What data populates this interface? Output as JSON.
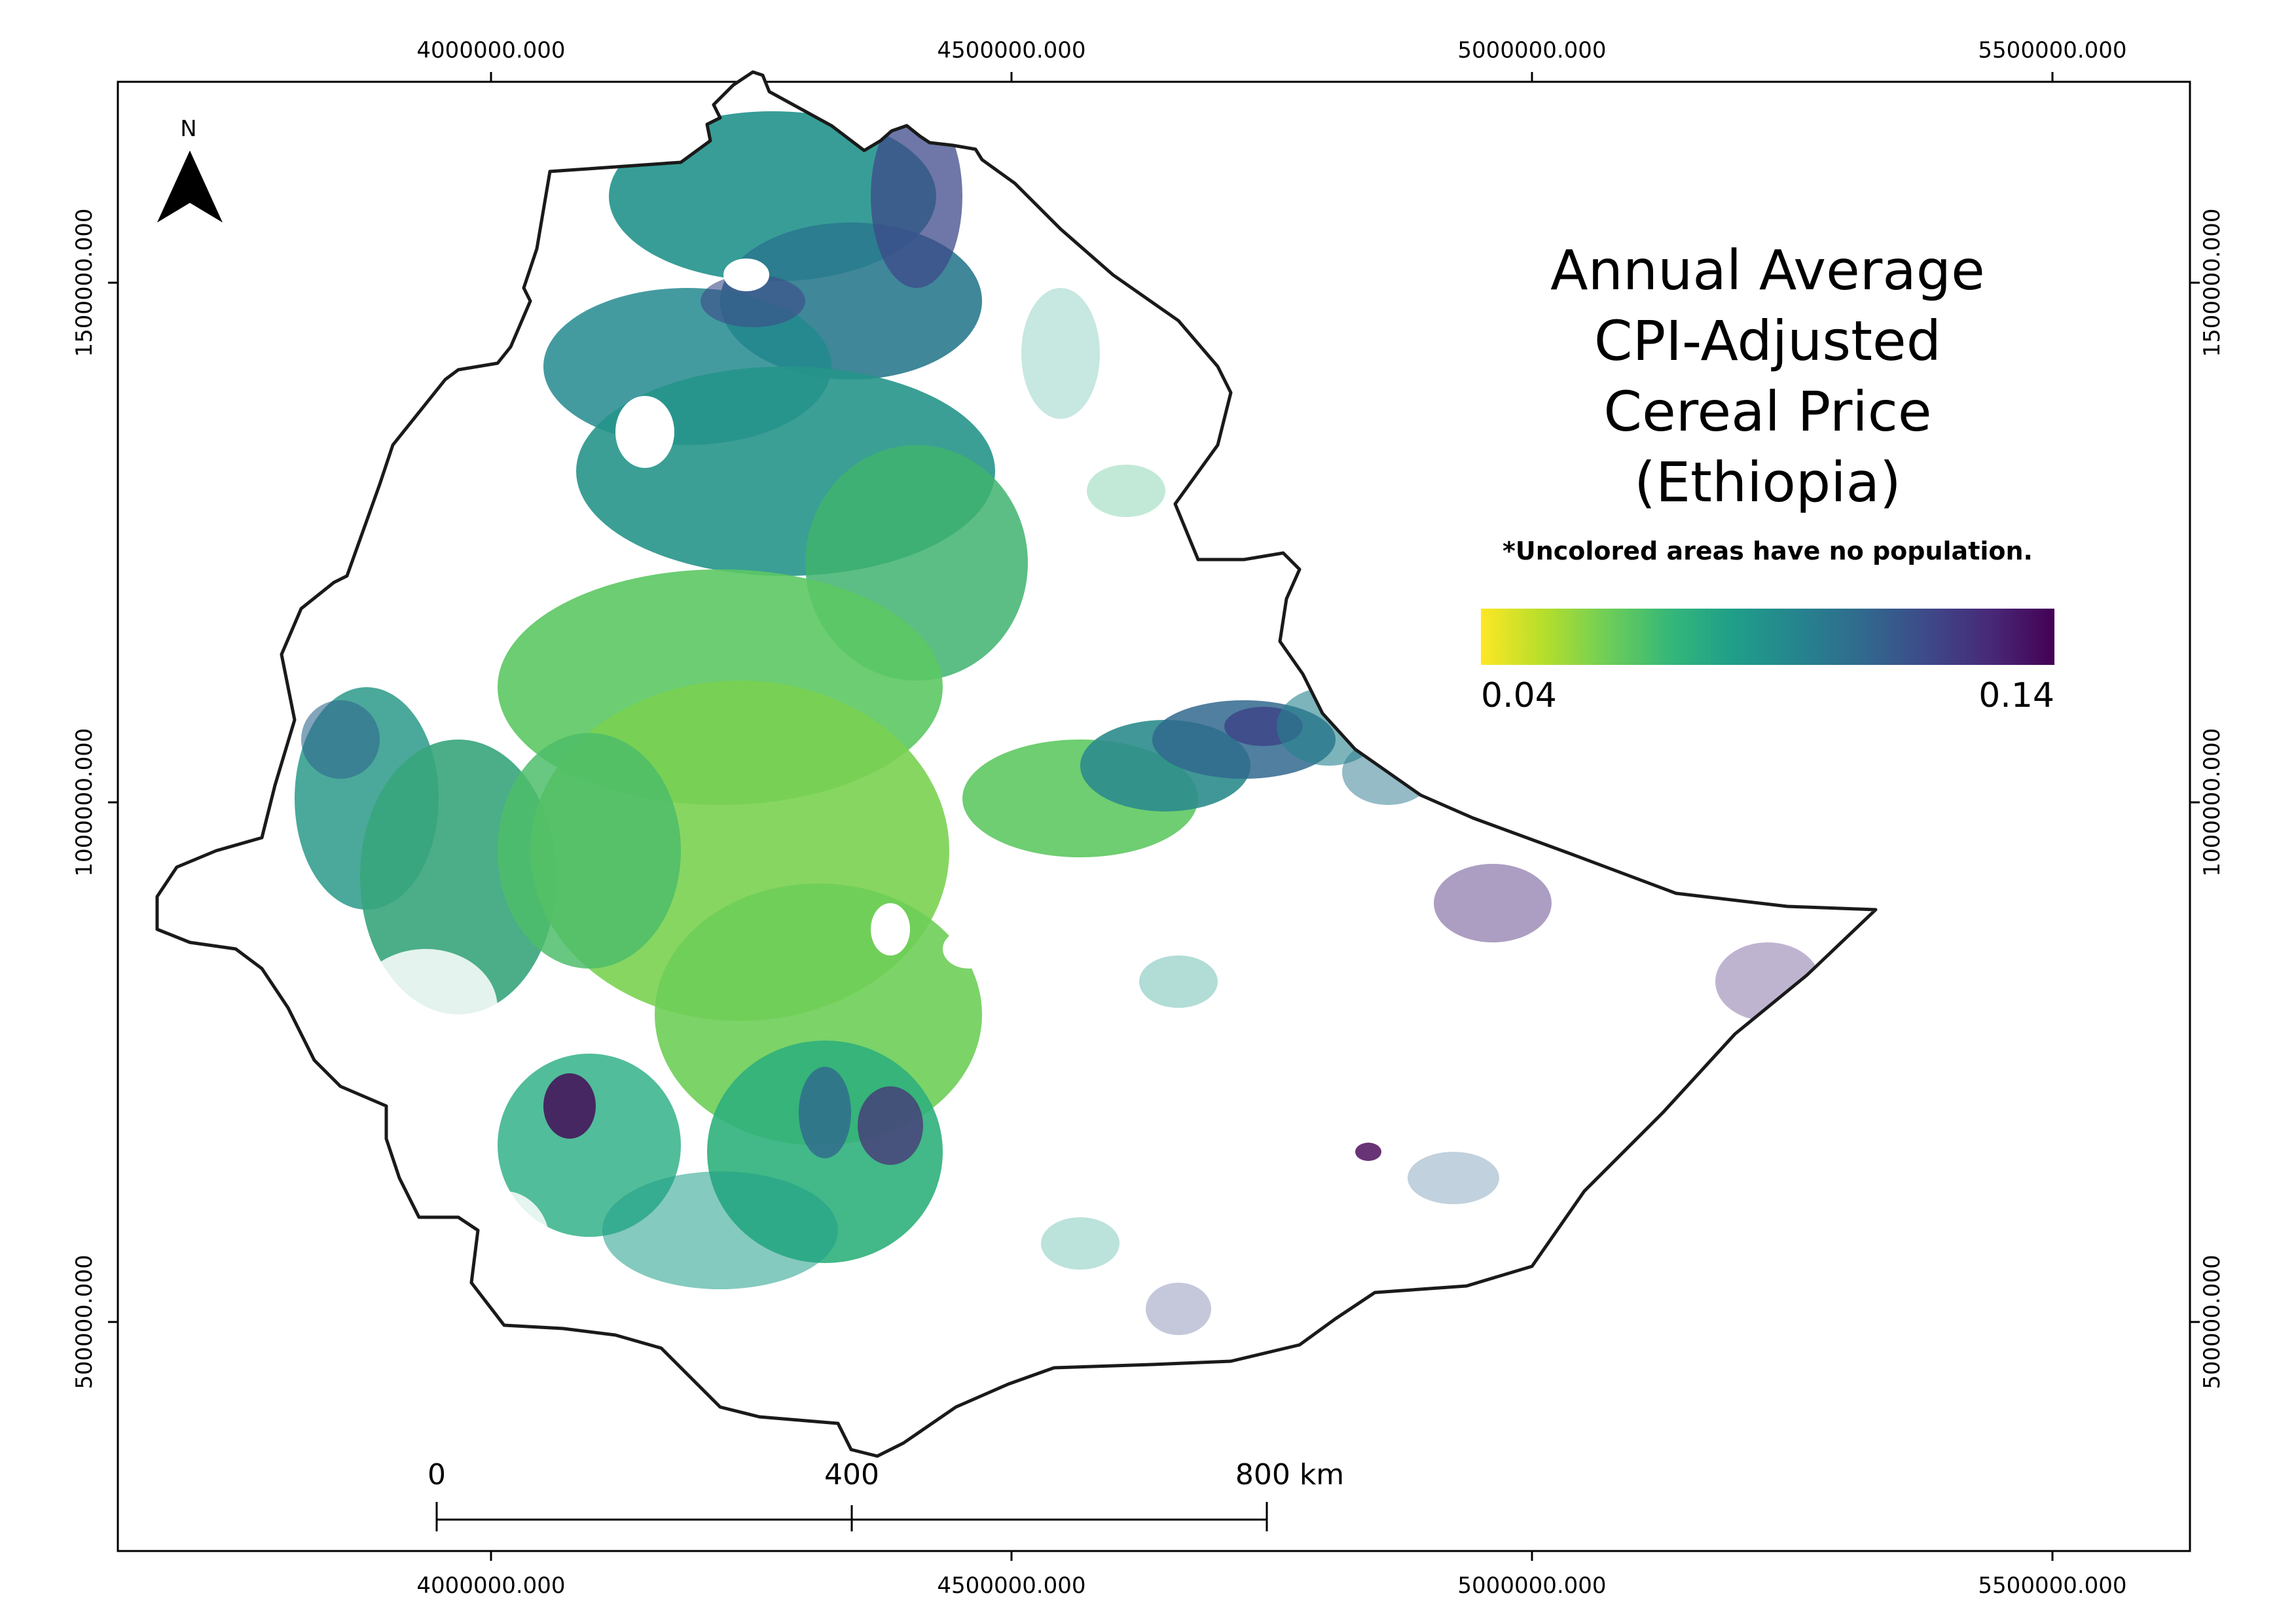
{
  "title": [
    "Annual Average",
    "CPI-Adjusted",
    "Cereal Price",
    "(Ethiopia)"
  ],
  "note": "*Uncolored areas have no population.",
  "legend": {
    "min_label": "0.04",
    "max_label": "0.14",
    "colors": [
      "#fde725",
      "#b5de2b",
      "#6ece58",
      "#35b779",
      "#1f9e89",
      "#26828e",
      "#31688e",
      "#3e4989",
      "#482878",
      "#440154"
    ]
  },
  "north_arrow": {
    "label": "N",
    "icon": "north-arrow-icon"
  },
  "scale_bar": {
    "labels": [
      "0",
      "400",
      "800 km"
    ]
  },
  "x_ticks": [
    "4000000.000",
    "4500000.000",
    "5000000.000",
    "5500000.000"
  ],
  "y_ticks": [
    "1500000.000",
    "1000000.000",
    "500000.000"
  ],
  "palette": {
    "border": "#1a1a1a",
    "frame": "#000000",
    "background": "#ffffff"
  }
}
